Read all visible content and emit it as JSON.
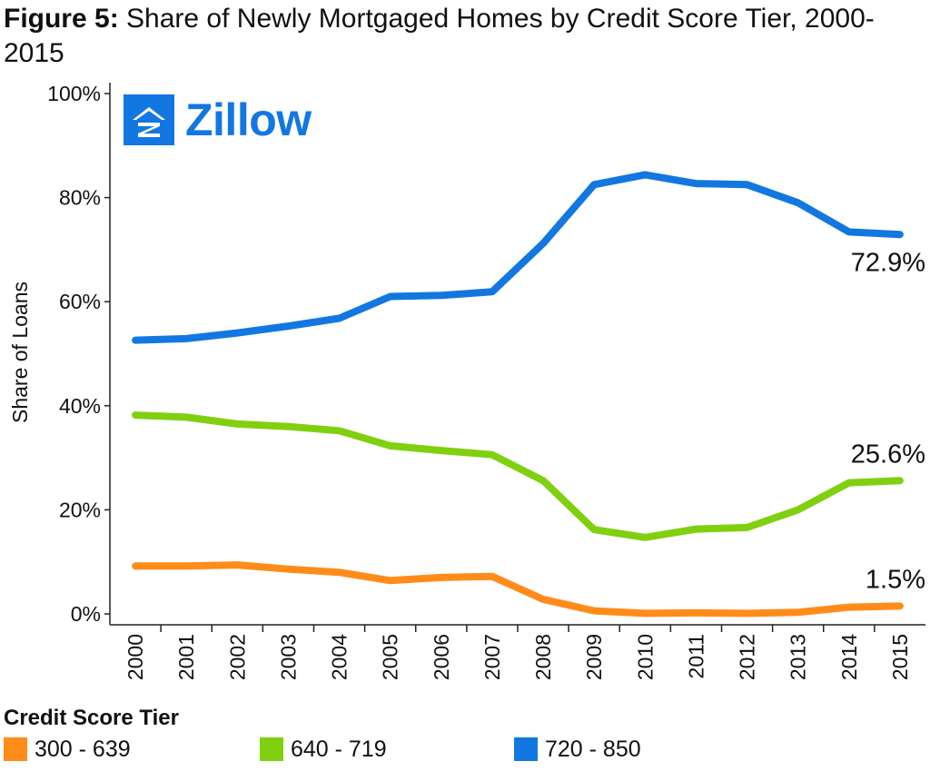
{
  "figure": {
    "label": "Figure 5:",
    "title": "Share of Newly Mortgaged Homes by Credit Score Tier, 2000-2015"
  },
  "logo": {
    "text": "Zillow",
    "color": "#1277e1"
  },
  "chart_data": {
    "type": "line",
    "ylabel": "Share of Loans",
    "xlabel": "",
    "ylim": [
      0,
      100
    ],
    "y_ticks": [
      "0%",
      "20%",
      "40%",
      "60%",
      "80%",
      "100%"
    ],
    "x": [
      "2000",
      "2001",
      "2002",
      "2003",
      "2004",
      "2005",
      "2006",
      "2007",
      "2008",
      "2009",
      "2010",
      "2011",
      "2012",
      "2013",
      "2014",
      "2015"
    ],
    "series": [
      {
        "name": "300 - 639",
        "color": "#ff8c1a",
        "values": [
          9.2,
          9.2,
          9.4,
          8.6,
          8.0,
          6.4,
          7.0,
          7.2,
          2.8,
          0.6,
          0.1,
          0.2,
          0.1,
          0.3,
          1.3,
          1.5
        ],
        "end_label": "1.5%"
      },
      {
        "name": "640 - 719",
        "color": "#80d010",
        "values": [
          38.2,
          37.8,
          36.5,
          36.0,
          35.2,
          32.3,
          31.4,
          30.6,
          25.6,
          16.2,
          14.7,
          16.3,
          16.6,
          20.0,
          25.2,
          25.6
        ],
        "end_label": "25.6%"
      },
      {
        "name": "720 - 850",
        "color": "#1277e1",
        "values": [
          52.6,
          52.9,
          54.0,
          55.3,
          56.8,
          61.0,
          61.2,
          61.9,
          71.2,
          82.5,
          84.4,
          82.7,
          82.5,
          79.0,
          73.4,
          72.9
        ],
        "end_label": "72.9%"
      }
    ],
    "legend_title": "Credit Score Tier",
    "legend_position": "bottom",
    "grid": false
  }
}
